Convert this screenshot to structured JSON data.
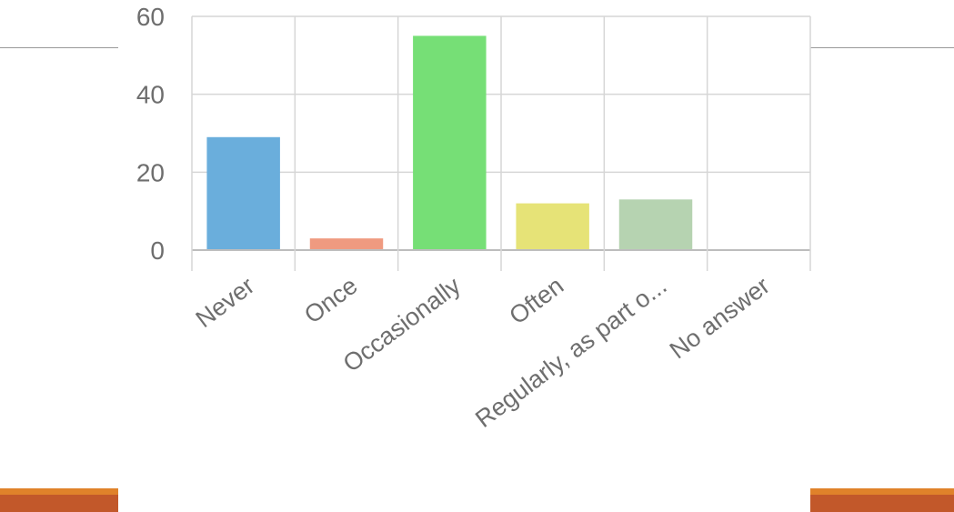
{
  "colors": {
    "slide_rule": "#9a9a9a",
    "accent_band_top": "#e0822a",
    "accent_band_bottom": "#c2582a",
    "grid": "#d6d6d6",
    "axis": "#bdbdbd",
    "label_text": "#6e6e6e"
  },
  "chart_data": {
    "type": "bar",
    "title": "",
    "xlabel": "",
    "ylabel": "",
    "categories": [
      "Never",
      "Once",
      "Occasionally",
      "Often",
      "Regularly, as part o...",
      "No answer"
    ],
    "values": [
      29,
      3,
      55,
      12,
      13,
      0
    ],
    "bar_colors": [
      "#6aaedc",
      "#ef9a80",
      "#76df76",
      "#e6e377",
      "#b6d3b1",
      "#cfcfcf"
    ],
    "ylim": [
      0,
      60
    ],
    "yticks": [
      0,
      20,
      40,
      60
    ],
    "grid": true,
    "legend": "none"
  }
}
